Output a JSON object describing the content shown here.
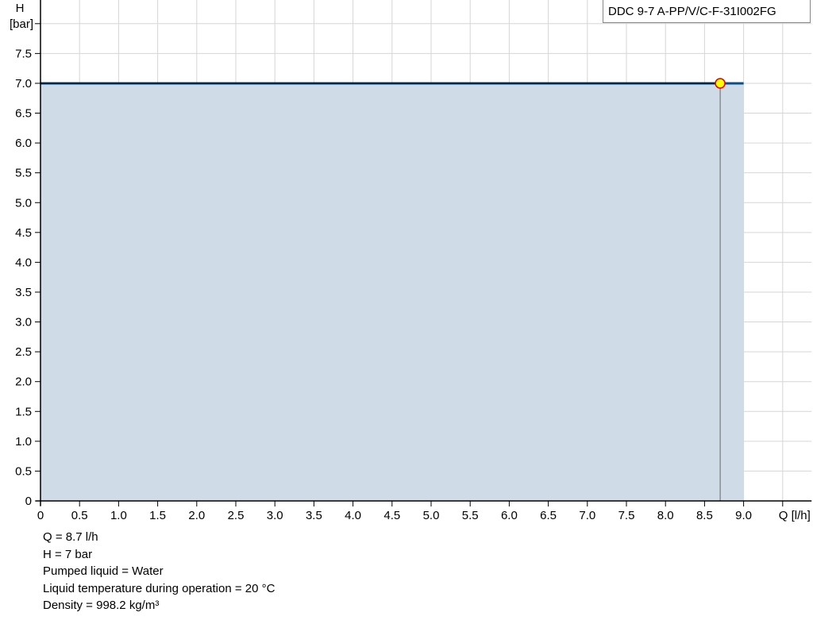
{
  "chart_data": {
    "type": "area",
    "title": "",
    "legend": {
      "label": "DDC 9-7 A-PP/V/C-F-31I002FG",
      "placement": "top-right"
    },
    "xlabel": "Q [l/h]",
    "ylabel_top": "H",
    "ylabel_unit": "[bar]",
    "xlim": [
      0,
      9.87
    ],
    "ylim": [
      0,
      8.0
    ],
    "x_ticks": [
      "0",
      "0.5",
      "1.0",
      "1.5",
      "2.0",
      "2.5",
      "3.0",
      "3.5",
      "4.0",
      "4.5",
      "5.0",
      "5.5",
      "6.0",
      "6.5",
      "7.0",
      "7.5",
      "8.0",
      "8.5",
      "9.0"
    ],
    "y_ticks": [
      "0",
      "0.5",
      "1.0",
      "1.5",
      "2.0",
      "2.5",
      "3.0",
      "3.5",
      "4.0",
      "4.5",
      "5.0",
      "5.5",
      "6.0",
      "6.5",
      "7.0",
      "7.5"
    ],
    "grid": true,
    "series": [
      {
        "name": "DDC 9-7 A-PP/V/C-F-31I002FG",
        "x": [
          0,
          9.0
        ],
        "y": [
          7.0,
          7.0
        ],
        "color": "#0b4f8a",
        "fill": "#cfdbe6"
      }
    ],
    "system_line": {
      "x": [
        0,
        8.7
      ],
      "y": [
        7.0,
        7.0
      ],
      "color": "#000000"
    },
    "duty_point": {
      "x": 8.7,
      "y": 7.0,
      "fill": "#ffff00",
      "stroke": "#e00000"
    }
  },
  "info": [
    "Q = 8.7 l/h",
    "H = 7 bar",
    "Pumped liquid = Water",
    "Liquid temperature during operation = 20 °C",
    "Density = 998.2 kg/m³"
  ]
}
